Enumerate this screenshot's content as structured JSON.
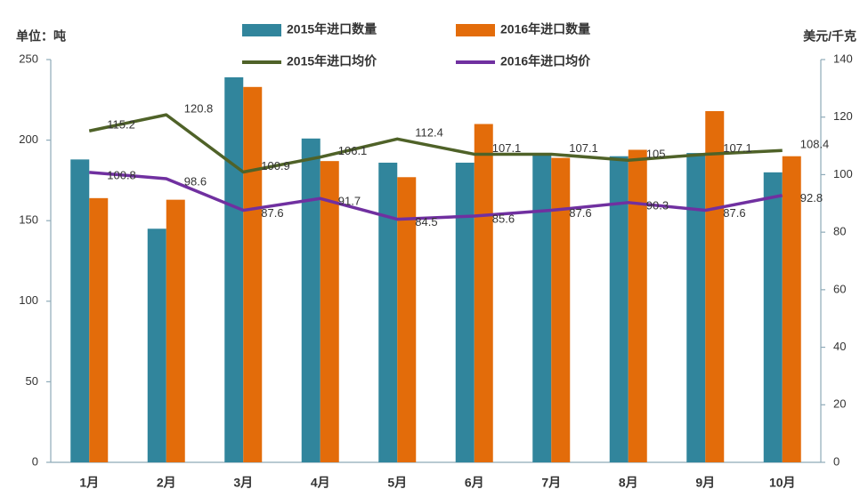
{
  "chart_data": {
    "type": "bar_line",
    "y_label": "单位：吨",
    "y2_label": "美元/千克",
    "categories": [
      "1月",
      "2月",
      "3月",
      "4月",
      "5月",
      "6月",
      "7月",
      "8月",
      "9月",
      "10月"
    ],
    "series": [
      {
        "name": "2015年进口数量",
        "type": "bar",
        "color": "#31859c",
        "values": [
          188,
          145,
          239,
          201,
          186,
          186,
          192,
          190,
          192,
          180
        ]
      },
      {
        "name": "2016年进口数量",
        "type": "bar",
        "color": "#e36c0a",
        "values": [
          164,
          163,
          233,
          187,
          177,
          210,
          189,
          194,
          218,
          190
        ]
      },
      {
        "name": "2015年进口均价",
        "type": "line",
        "axis": "y2",
        "color": "#4f6228",
        "values": [
          115.2,
          120.8,
          100.9,
          106.1,
          112.4,
          107.1,
          107.1,
          105,
          107.1,
          108.4
        ]
      },
      {
        "name": "2016年进口均价",
        "type": "line",
        "axis": "y2",
        "color": "#7030a0",
        "values": [
          100.8,
          98.6,
          87.6,
          91.7,
          84.5,
          85.6,
          87.6,
          90.3,
          87.6,
          92.8
        ]
      }
    ],
    "ylim": [
      0,
      250
    ],
    "yticks": [
      0,
      50,
      100,
      150,
      200,
      250
    ],
    "y2lim": [
      0,
      140
    ],
    "y2ticks": [
      0,
      20,
      40,
      60,
      80,
      100,
      120,
      140
    ],
    "grid": false,
    "legend": "top"
  }
}
